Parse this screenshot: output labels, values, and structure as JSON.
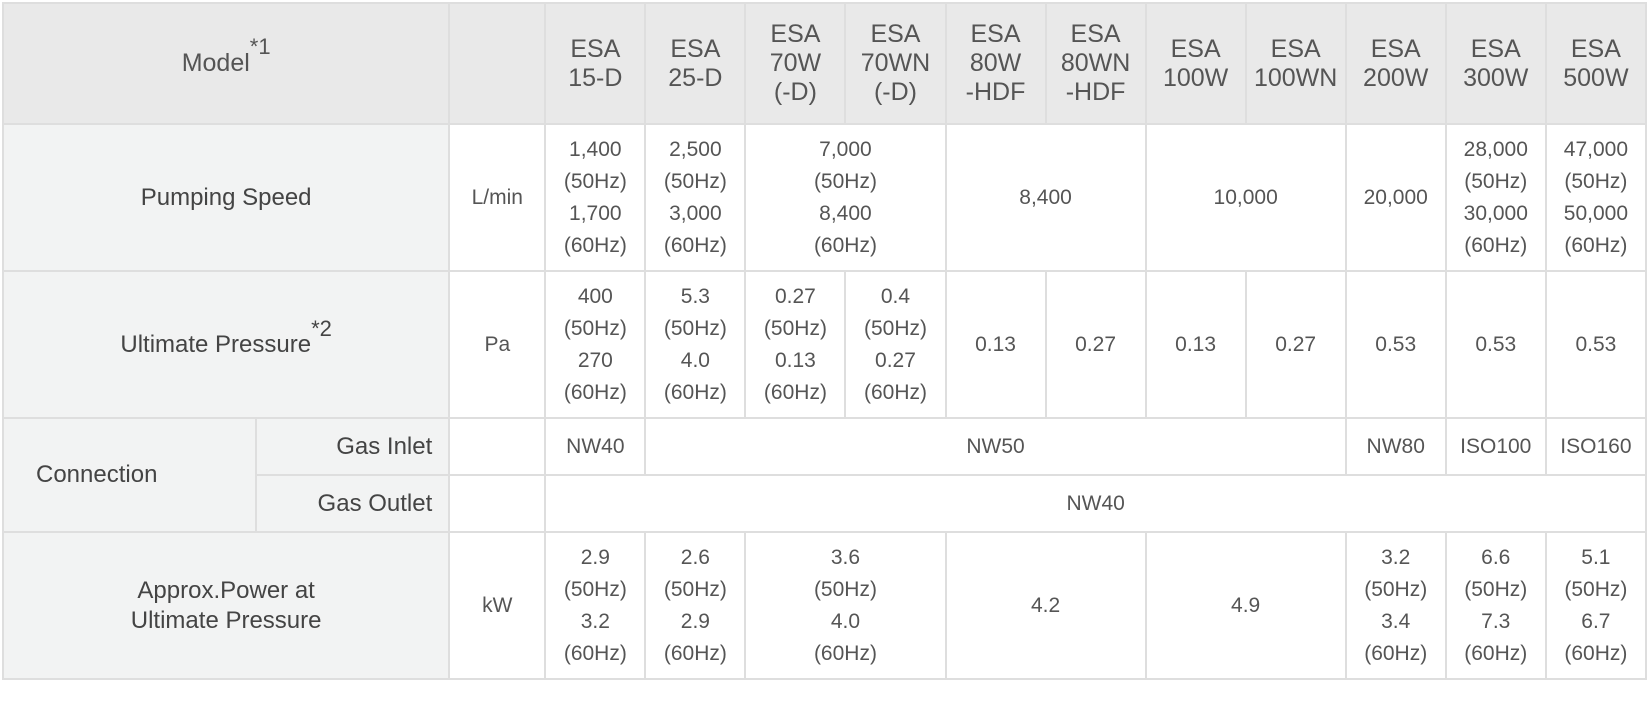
{
  "headers": {
    "model": "Model",
    "model_note": "*1",
    "models": [
      "ESA\n15-D",
      "ESA\n25-D",
      "ESA\n70W\n(-D)",
      "ESA\n70WN\n(-D)",
      "ESA\n80W\n-HDF",
      "ESA\n80WN\n-HDF",
      "ESA\n100W",
      "ESA\n100WN",
      "ESA\n200W",
      "ESA\n300W",
      "ESA\n500W"
    ]
  },
  "pumping_speed": {
    "label": "Pumping Speed",
    "unit": "L/min",
    "esa15": "1,400\n(50Hz)\n1,700\n(60Hz)",
    "esa25": "2,500\n(50Hz)\n3,000\n(60Hz)",
    "esa70": "7,000\n(50Hz)\n8,400\n(60Hz)",
    "esa80": "8,400",
    "esa100": "10,000",
    "esa200": "20,000",
    "esa300": "28,000\n(50Hz)\n30,000\n(60Hz)",
    "esa500": "47,000\n(50Hz)\n50,000\n(60Hz)"
  },
  "ultimate_pressure": {
    "label": "Ultimate Pressure",
    "note": "*2",
    "unit": "Pa",
    "values": [
      "400\n(50Hz)\n270\n(60Hz)",
      "5.3\n(50Hz)\n4.0\n(60Hz)",
      "0.27\n(50Hz)\n0.13\n(60Hz)",
      "0.4\n(50Hz)\n0.27\n(60Hz)",
      "0.13",
      "0.27",
      "0.13",
      "0.27",
      "0.53",
      "0.53",
      "0.53"
    ]
  },
  "connection": {
    "label": "Connection",
    "gas_inlet": {
      "label": "Gas Inlet",
      "esa15": "NW40",
      "mid": "NW50",
      "esa200": "NW80",
      "esa300": "ISO100",
      "esa500": "ISO160"
    },
    "gas_outlet": {
      "label": "Gas Outlet",
      "all": "NW40"
    }
  },
  "power": {
    "label": "Approx.Power at\nUltimate Pressure",
    "unit": "kW",
    "esa15": "2.9\n(50Hz)\n3.2\n(60Hz)",
    "esa25": "2.6\n(50Hz)\n2.9\n(60Hz)",
    "esa70": "3.6\n(50Hz)\n4.0\n(60Hz)",
    "esa80": "4.2",
    "esa100": "4.9",
    "esa200": "3.2\n(50Hz)\n3.4\n(60Hz)",
    "esa300": "6.6\n(50Hz)\n7.3\n(60Hz)",
    "esa500": "5.1\n(50Hz)\n6.7\n(60Hz)"
  }
}
